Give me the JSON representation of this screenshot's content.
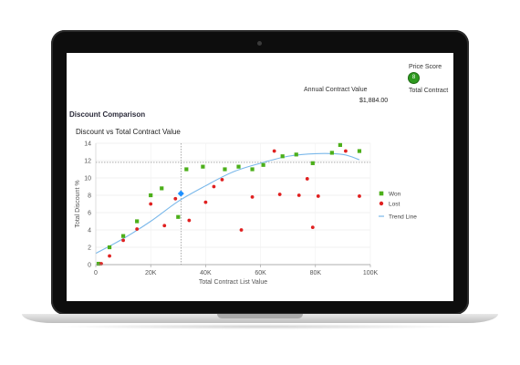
{
  "header": {
    "price_score_label": "Price Score",
    "price_score_value": "8",
    "total_contract_label": "Total Contract",
    "annual_contract_label": "Annual Contract Value",
    "annual_contract_value": "$1,884.00"
  },
  "section_title": "Discount Comparison",
  "chart_data": {
    "type": "scatter",
    "title": "Discount vs Total Contract Value",
    "xlabel": "Total Contract List Value",
    "ylabel": "Total Discount %",
    "xlim": [
      0,
      100000
    ],
    "ylim": [
      0,
      14
    ],
    "x_ticks": [
      0,
      20000,
      40000,
      60000,
      80000,
      100000
    ],
    "x_tick_labels": [
      "0",
      "20K",
      "40K",
      "60K",
      "80K",
      "100K"
    ],
    "y_ticks": [
      0,
      2,
      4,
      6,
      8,
      10,
      12,
      14
    ],
    "y_tick_labels": [
      "0",
      "2",
      "4",
      "6",
      "8",
      "10",
      "12",
      "14"
    ],
    "legend_position": "right",
    "series": [
      {
        "name": "Won",
        "marker": "square",
        "color": "#4caf1a",
        "points": [
          [
            1000,
            0.1
          ],
          [
            5000,
            2.0
          ],
          [
            10000,
            3.3
          ],
          [
            15000,
            5.0
          ],
          [
            20000,
            8.0
          ],
          [
            24000,
            8.8
          ],
          [
            30000,
            5.5
          ],
          [
            33000,
            11.0
          ],
          [
            39000,
            11.3
          ],
          [
            47000,
            11.0
          ],
          [
            52000,
            11.3
          ],
          [
            57000,
            11.0
          ],
          [
            61000,
            11.5
          ],
          [
            68000,
            12.5
          ],
          [
            73000,
            12.7
          ],
          [
            79000,
            11.7
          ],
          [
            86000,
            12.9
          ],
          [
            89000,
            13.8
          ],
          [
            96000,
            13.1
          ]
        ]
      },
      {
        "name": "Lost",
        "marker": "circle",
        "color": "#e02020",
        "points": [
          [
            2000,
            0.1
          ],
          [
            5000,
            1.0
          ],
          [
            10000,
            2.8
          ],
          [
            15000,
            4.1
          ],
          [
            20000,
            7.0
          ],
          [
            25000,
            4.5
          ],
          [
            29000,
            7.6
          ],
          [
            34000,
            5.1
          ],
          [
            40000,
            7.2
          ],
          [
            43000,
            9.0
          ],
          [
            46000,
            9.8
          ],
          [
            53000,
            4.0
          ],
          [
            57000,
            7.8
          ],
          [
            65000,
            13.1
          ],
          [
            67000,
            8.1
          ],
          [
            74000,
            8.0
          ],
          [
            77000,
            9.9
          ],
          [
            79000,
            4.3
          ],
          [
            81000,
            7.9
          ],
          [
            91000,
            13.1
          ],
          [
            96000,
            7.9
          ]
        ]
      }
    ],
    "trend_line": {
      "name": "Trend Line",
      "color": "#7ab8ea",
      "points": [
        [
          0,
          1.3
        ],
        [
          10000,
          3.0
        ],
        [
          20000,
          5.0
        ],
        [
          30000,
          7.3
        ],
        [
          40000,
          9.1
        ],
        [
          50000,
          10.7
        ],
        [
          60000,
          11.7
        ],
        [
          70000,
          12.5
        ],
        [
          80000,
          12.8
        ],
        [
          90000,
          12.7
        ],
        [
          96000,
          12.1
        ]
      ]
    },
    "highlight_point": {
      "x": 31000,
      "y": 8.2,
      "color": "#1e90ff"
    }
  }
}
